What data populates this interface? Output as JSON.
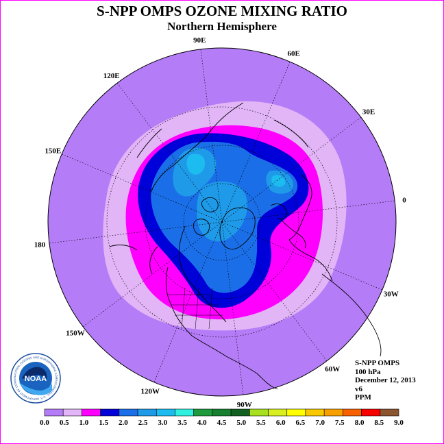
{
  "title": "S-NPP OMPS OZONE MIXING RATIO",
  "subtitle": "Northern Hemisphere",
  "longitude_labels": [
    {
      "label": "90E",
      "angle": 90
    },
    {
      "label": "60E",
      "angle": 60
    },
    {
      "label": "30E",
      "angle": 30
    },
    {
      "label": "0",
      "angle": 0
    },
    {
      "label": "30W",
      "angle": -30
    },
    {
      "label": "60W",
      "angle": -60
    },
    {
      "label": "90W",
      "angle": -90
    },
    {
      "label": "120W",
      "angle": -120
    },
    {
      "label": "150W",
      "angle": -150
    },
    {
      "label": "180",
      "angle": 180
    },
    {
      "label": "150E",
      "angle": 150
    },
    {
      "label": "120E",
      "angle": 120
    }
  ],
  "info": {
    "instrument": "S-NPP OMPS",
    "level": "100 hPa",
    "date": "December 12, 2013",
    "version": "v6",
    "units": "PPM"
  },
  "colorbar": {
    "ticks": [
      "0.0",
      "0.5",
      "1.0",
      "1.5",
      "2.0",
      "2.5",
      "3.0",
      "3.5",
      "4.0",
      "4.5",
      "5.0",
      "5.5",
      "6.0",
      "6.5",
      "7.0",
      "7.5",
      "8.0",
      "8.5",
      "9.0"
    ],
    "colors": [
      "#b57cf7",
      "#e2b5f7",
      "#ff00ff",
      "#0000d8",
      "#1a6fe8",
      "#1e9ae8",
      "#1cbcf0",
      "#30f0e0",
      "#1f9a3c",
      "#178030",
      "#116022",
      "#a6e020",
      "#d8f020",
      "#ffff00",
      "#f8c800",
      "#f8a000",
      "#f86000",
      "#f80000",
      "#8b5530"
    ]
  },
  "logo": {
    "center_text": "NOAA",
    "ring_text": "NATIONAL OCEANIC AND ATMOSPHERIC ADMINISTRATION · U.S. DEPARTMENT OF COMMERCE"
  },
  "ozone_bands_ppm": [
    "0.0-0.5",
    "0.5-1.0",
    "1.0-1.5",
    "1.5-2.0",
    "2.0-2.5",
    "2.5-3.0"
  ]
}
